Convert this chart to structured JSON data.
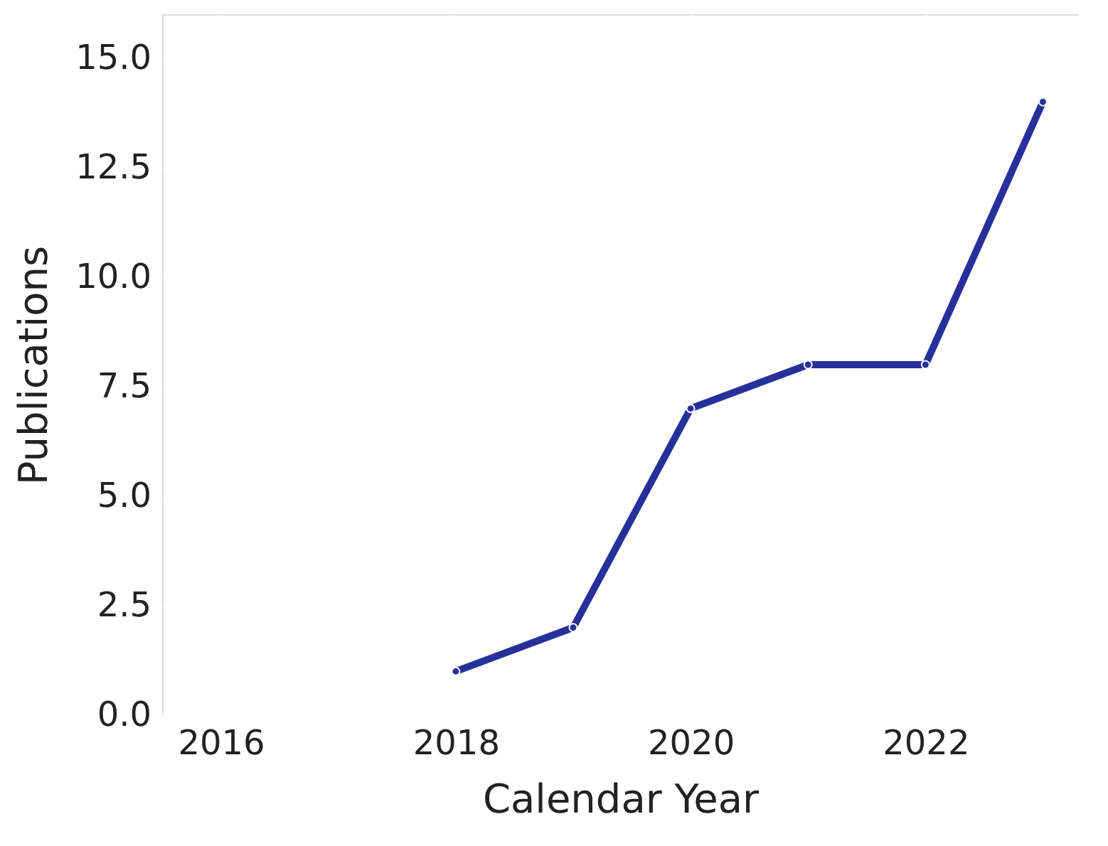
{
  "chart_data": {
    "type": "line",
    "xlabel": "Calendar Year",
    "ylabel": "Publications",
    "x": [
      2018,
      2019,
      2020,
      2021,
      2022,
      2023
    ],
    "series": [
      {
        "color": "#27309a",
        "values": [
          1,
          2,
          7,
          8,
          8,
          14
        ]
      }
    ],
    "xlim": [
      2015.5,
      2023.3
    ],
    "xticks": [
      2016,
      2018,
      2020,
      2022
    ],
    "ylim": [
      0,
      16
    ],
    "yticks": [
      {
        "value": 0,
        "label": "0.0"
      },
      {
        "value": 2.5,
        "label": "2.5"
      },
      {
        "value": 5,
        "label": "5.0"
      },
      {
        "value": 7.5,
        "label": "7.5"
      },
      {
        "value": 10,
        "label": "10.0"
      },
      {
        "value": 12.5,
        "label": "12.5"
      },
      {
        "value": 15,
        "label": "15.0"
      }
    ],
    "grid": true,
    "marker": "circle",
    "line_style": "solid"
  }
}
